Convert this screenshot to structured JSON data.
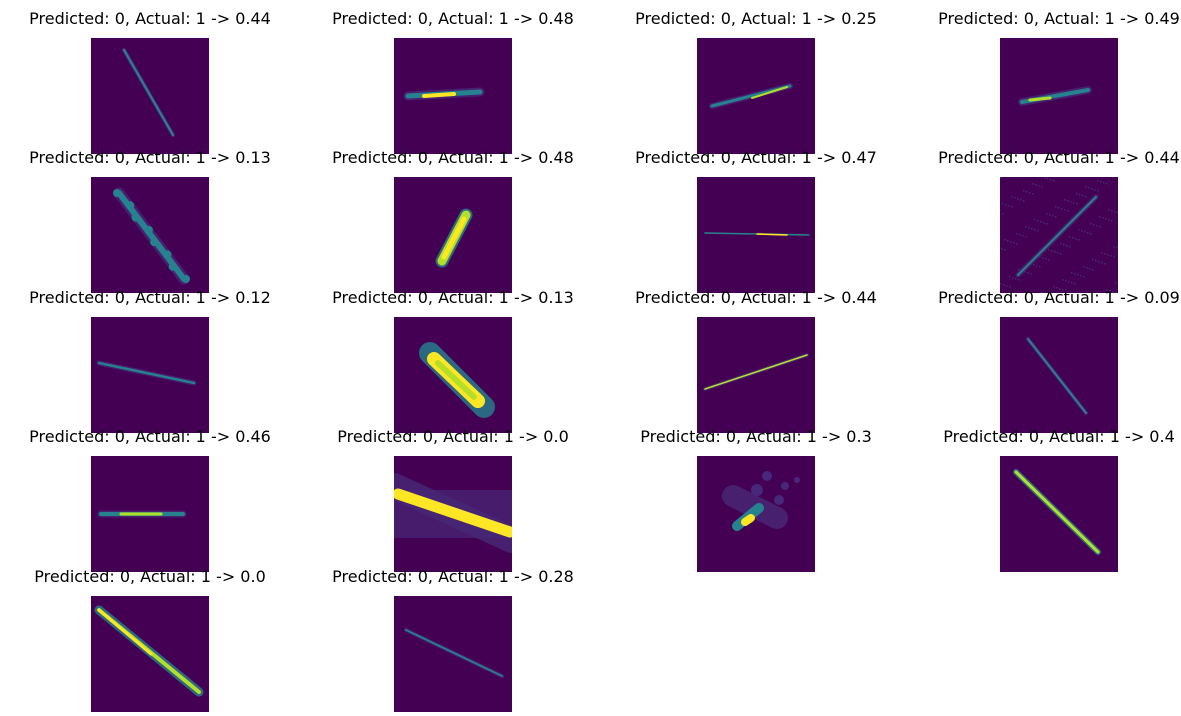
{
  "colors": {
    "background": "#440154",
    "low": "#482878",
    "mid": "#26828e",
    "high": "#fde725",
    "bright": "#b5de2b"
  },
  "panels": [
    {
      "title": "Predicted: 0, Actual: 1 -> 0.44",
      "streak": "thin diagonal descending"
    },
    {
      "title": "Predicted: 0, Actual: 1 -> 0.48",
      "streak": "short thick horizontal"
    },
    {
      "title": "Predicted: 0, Actual: 1 -> 0.25",
      "streak": "short ascending"
    },
    {
      "title": "Predicted: 0, Actual: 1 -> 0.49",
      "streak": "short ascending"
    },
    {
      "title": "Predicted: 0, Actual: 1 -> 0.13",
      "streak": "clumpy diagonal descending"
    },
    {
      "title": "Predicted: 0, Actual: 1 -> 0.48",
      "streak": "bright thick steep"
    },
    {
      "title": "Predicted: 0, Actual: 1 -> 0.47",
      "streak": "thin horizontal"
    },
    {
      "title": "Predicted: 0, Actual: 1 -> 0.44",
      "streak": "noisy diagonal ascending"
    },
    {
      "title": "Predicted: 0, Actual: 1 -> 0.12",
      "streak": "thin descending"
    },
    {
      "title": "Predicted: 0, Actual: 1 -> 0.13",
      "streak": "bright blob diagonal"
    },
    {
      "title": "Predicted: 0, Actual: 1 -> 0.44",
      "streak": "thin ascending"
    },
    {
      "title": "Predicted: 0, Actual: 1 -> 0.09",
      "streak": "thin diagonal descending"
    },
    {
      "title": "Predicted: 0, Actual: 1 -> 0.46",
      "streak": "horizontal dotted"
    },
    {
      "title": "Predicted: 0, Actual: 1 -> 0.0",
      "streak": "wide bright band"
    },
    {
      "title": "Predicted: 0, Actual: 1 -> 0.3",
      "streak": "irregular cloud"
    },
    {
      "title": "Predicted: 0, Actual: 1 -> 0.4",
      "streak": "long bright diagonal"
    },
    {
      "title": "Predicted: 0, Actual: 1 -> 0.0",
      "streak": "long bright diagonal"
    },
    {
      "title": "Predicted: 0, Actual: 1 -> 0.28",
      "streak": "thin diagonal descending"
    }
  ]
}
